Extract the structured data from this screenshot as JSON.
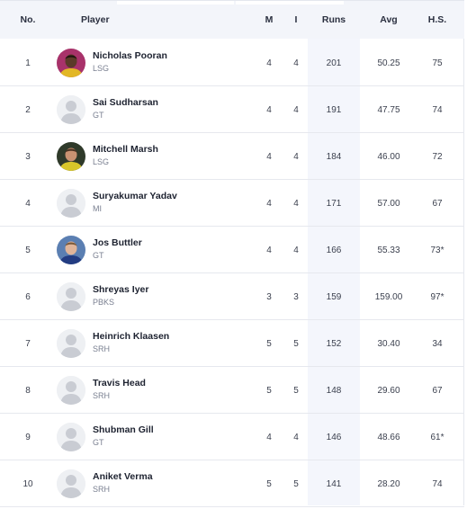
{
  "header": {
    "no": "No.",
    "player": "Player",
    "matches": "M",
    "innings": "I",
    "runs": "Runs",
    "avg": "Avg",
    "hs": "H.S."
  },
  "rows": [
    {
      "no": "1",
      "name": "Nicholas Pooran",
      "team": "LSG",
      "m": "4",
      "i": "4",
      "runs": "201",
      "avg": "50.25",
      "hs": "75",
      "avatar": "photo-purple"
    },
    {
      "no": "2",
      "name": "Sai Sudharsan",
      "team": "GT",
      "m": "4",
      "i": "4",
      "runs": "191",
      "avg": "47.75",
      "hs": "74",
      "avatar": "placeholder"
    },
    {
      "no": "3",
      "name": "Mitchell Marsh",
      "team": "LSG",
      "m": "4",
      "i": "4",
      "runs": "184",
      "avg": "46.00",
      "hs": "72",
      "avatar": "photo-yellow"
    },
    {
      "no": "4",
      "name": "Suryakumar Yadav",
      "team": "MI",
      "m": "4",
      "i": "4",
      "runs": "171",
      "avg": "57.00",
      "hs": "67",
      "avatar": "placeholder"
    },
    {
      "no": "5",
      "name": "Jos Buttler",
      "team": "GT",
      "m": "4",
      "i": "4",
      "runs": "166",
      "avg": "55.33",
      "hs": "73*",
      "avatar": "photo-blue"
    },
    {
      "no": "6",
      "name": "Shreyas Iyer",
      "team": "PBKS",
      "m": "3",
      "i": "3",
      "runs": "159",
      "avg": "159.00",
      "hs": "97*",
      "avatar": "placeholder"
    },
    {
      "no": "7",
      "name": "Heinrich Klaasen",
      "team": "SRH",
      "m": "5",
      "i": "5",
      "runs": "152",
      "avg": "30.40",
      "hs": "34",
      "avatar": "placeholder"
    },
    {
      "no": "8",
      "name": "Travis Head",
      "team": "SRH",
      "m": "5",
      "i": "5",
      "runs": "148",
      "avg": "29.60",
      "hs": "67",
      "avatar": "placeholder"
    },
    {
      "no": "9",
      "name": "Shubman Gill",
      "team": "GT",
      "m": "4",
      "i": "4",
      "runs": "146",
      "avg": "48.66",
      "hs": "61*",
      "avatar": "placeholder"
    },
    {
      "no": "10",
      "name": "Aniket Verma",
      "team": "SRH",
      "m": "5",
      "i": "5",
      "runs": "141",
      "avg": "28.20",
      "hs": "74",
      "avatar": "placeholder"
    }
  ],
  "colors": {
    "header_bg": "#f3f5fa",
    "runs_band": "#f4f6fc",
    "row_border": "#e6e8ee",
    "placeholder": "#c9ccd3"
  }
}
